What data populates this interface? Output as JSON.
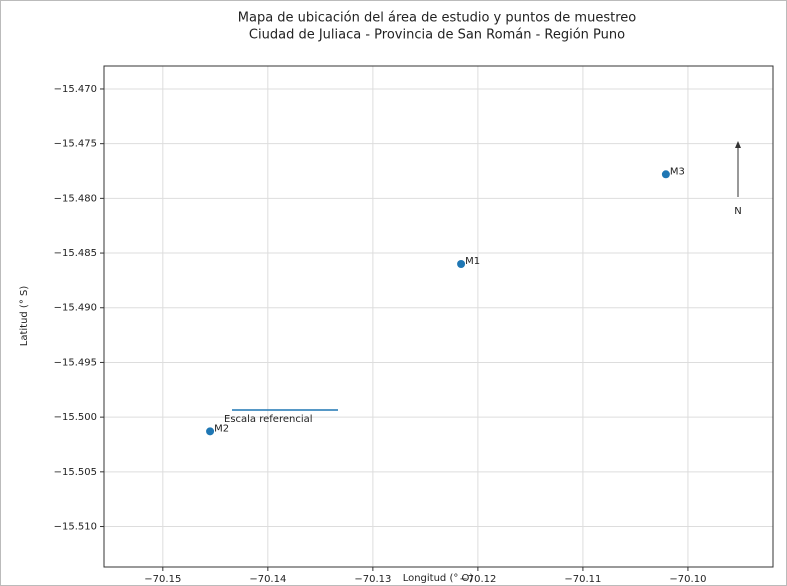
{
  "chart_data": {
    "type": "scatter",
    "title": "Mapa de ubicación del área de estudio y puntos de muestreo",
    "subtitle": "Ciudad de Juliaca - Provincia de San Román - Región Puno",
    "x_label": "Longitud (° O)",
    "y_label": "Latitud (° S)",
    "series": [
      {
        "color": "#1f77b4",
        "labels": [
          "M1",
          "M2",
          "M3"
        ],
        "x": [
          -70.1216,
          -70.1455,
          -70.1021
        ],
        "values": [
          -15.486,
          -15.5013,
          -15.4778
        ]
      }
    ],
    "annotations": [
      "Escala referencial",
      "N"
    ],
    "xlim": [
      -70.1556,
      -70.0919
    ],
    "ylim": [
      -15.5137,
      -15.4679
    ],
    "xticks": [
      {
        "value": -70.15,
        "label": "−70.15"
      },
      {
        "value": -70.14,
        "label": "−70.14"
      },
      {
        "value": -70.13,
        "label": "−70.13"
      },
      {
        "value": -70.12,
        "label": "−70.12"
      },
      {
        "value": -70.11,
        "label": "−70.11"
      },
      {
        "value": -70.1,
        "label": "−70.10"
      }
    ],
    "yticks": [
      {
        "value": -15.47,
        "label": "−15.470"
      },
      {
        "value": -15.475,
        "label": "−15.475"
      },
      {
        "value": -15.48,
        "label": "−15.480"
      },
      {
        "value": -15.485,
        "label": "−15.485"
      },
      {
        "value": -15.49,
        "label": "−15.490"
      },
      {
        "value": -15.495,
        "label": "−15.495"
      },
      {
        "value": -15.5,
        "label": "−15.500"
      },
      {
        "value": -15.505,
        "label": "−15.505"
      },
      {
        "value": -15.51,
        "label": "−15.510"
      }
    ],
    "grid": true
  }
}
